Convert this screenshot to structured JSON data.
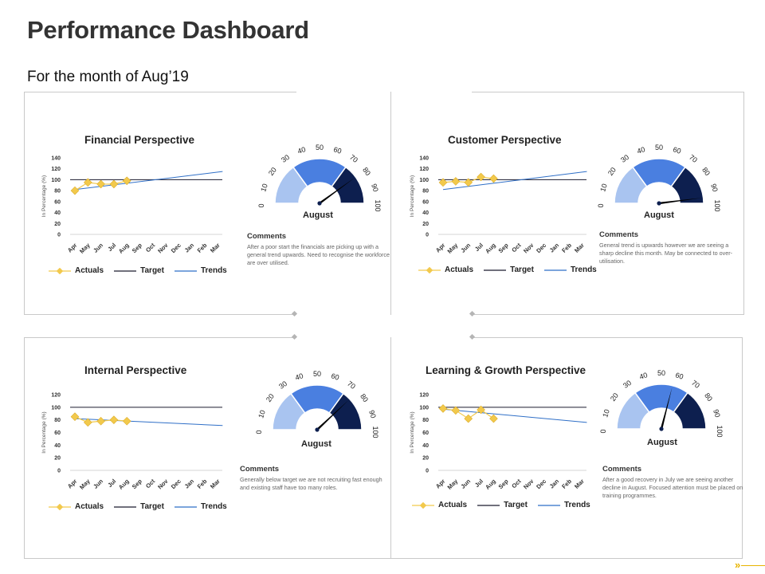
{
  "header": {
    "title": "Performance Dashboard",
    "subtitle": "For the month of Aug’19"
  },
  "months": [
    "Apr",
    "May",
    "Jun",
    "Jul",
    "Aug",
    "Sep",
    "Oct",
    "Nov",
    "Dec",
    "Jan",
    "Feb",
    "Mar"
  ],
  "gauge_ticks": [
    "0",
    "10",
    "20",
    "30",
    "40",
    "50",
    "60",
    "70",
    "80",
    "90",
    "100"
  ],
  "colors": {
    "actuals": "#f2c94c",
    "target": "#1a1a2e",
    "trends": "#2f6fc7",
    "gauge_light": "#a9c4f0",
    "gauge_mid": "#4a7fe0",
    "gauge_dark": "#0d1f4f",
    "frame": "#c9c9c9",
    "accent": "#e8b400"
  },
  "legend": {
    "actuals": "Actuals",
    "target": "Target",
    "trends": "Trends"
  },
  "comments_heading": "Comments",
  "panels": [
    {
      "title": "Financial Perspective",
      "ylabel": "In Percentage (%)",
      "yticks": [
        0,
        20,
        40,
        60,
        80,
        100,
        120,
        140
      ],
      "ymax": 140,
      "actuals": [
        80,
        95,
        92,
        92,
        98
      ],
      "target": 100,
      "trend_start": 82,
      "trend_end": 115,
      "gauge_value": 80,
      "gauge_label": "August",
      "comment": "After a poor start the financials are picking up with a general trend upwards. Need to recognise the workforce are over utilised."
    },
    {
      "title": "Customer Perspective",
      "ylabel": "In Percentage (%)",
      "yticks": [
        0,
        20,
        40,
        60,
        80,
        100,
        120,
        140
      ],
      "ymax": 140,
      "actuals": [
        95,
        97,
        95,
        105,
        102
      ],
      "target": 100,
      "trend_start": 82,
      "trend_end": 115,
      "gauge_value": 96,
      "gauge_label": "August",
      "comment": "General trend is upwards however we are seeing a sharp decline this month. May be connected to over-utilisation."
    },
    {
      "title": "Internal Perspective",
      "ylabel": "In Percentage (%)",
      "yticks": [
        0,
        20,
        40,
        60,
        80,
        100,
        120
      ],
      "ymax": 120,
      "actuals": [
        85,
        76,
        78,
        80,
        78
      ],
      "target": 100,
      "trend_start": 82,
      "trend_end": 71,
      "gauge_value": 76,
      "gauge_label": "August",
      "comment": "Generally below target  we are not recruiting fast enough and existing staff have too many roles."
    },
    {
      "title": "Learning & Growth Perspective",
      "ylabel": "In Percentage (%)",
      "yticks": [
        0,
        20,
        40,
        60,
        80,
        100,
        120
      ],
      "ymax": 120,
      "actuals": [
        98,
        95,
        82,
        96,
        82
      ],
      "target": 100,
      "trend_start": 97,
      "trend_end": 76,
      "gauge_value": 58,
      "gauge_label": "August",
      "comment": "After a good recovery in July we are seeing another decline in August. Focused attention must be placed on training programmes."
    }
  ],
  "footer": {
    "arrow": "»"
  }
}
